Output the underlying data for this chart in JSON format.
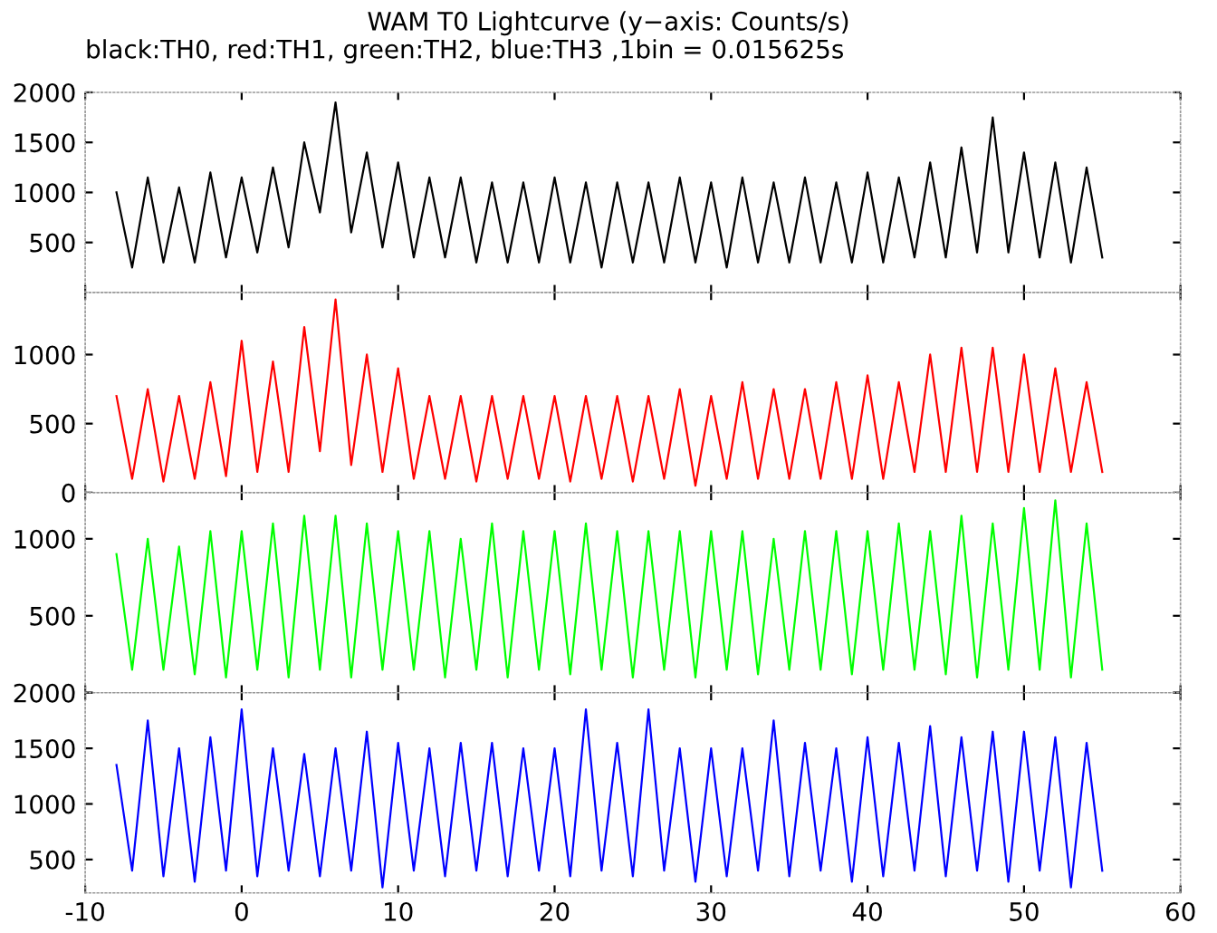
{
  "chart_data": [
    {
      "type": "line",
      "title": "WAM T0 Lightcurve (y−axis: Counts/s)",
      "subtitle": "black:TH0, red:TH1, green:TH2, blue:TH3 ,1bin = 0.015625s",
      "x": [
        -8,
        -7,
        -6,
        -5,
        -4,
        -3,
        -2,
        -1,
        0,
        1,
        2,
        3,
        4,
        5,
        6,
        7,
        8,
        9,
        10,
        11,
        12,
        13,
        14,
        15,
        16,
        17,
        18,
        19,
        20,
        21,
        22,
        23,
        24,
        25,
        26,
        27,
        28,
        29,
        30,
        31,
        32,
        33,
        34,
        35,
        36,
        37,
        38,
        39,
        40,
        41,
        42,
        43,
        44,
        45,
        46,
        47,
        48,
        49,
        50,
        51,
        52,
        53,
        54,
        55
      ],
      "series": [
        {
          "color": "#000000",
          "values": [
            1000,
            250,
            1150,
            300,
            1050,
            300,
            1200,
            350,
            1150,
            400,
            1250,
            450,
            1500,
            800,
            1900,
            600,
            1400,
            450,
            1300,
            350,
            1150,
            350,
            1150,
            300,
            1100,
            300,
            1100,
            300,
            1150,
            300,
            1100,
            250,
            1100,
            300,
            1100,
            300,
            1150,
            300,
            1100,
            250,
            1150,
            300,
            1100,
            300,
            1150,
            300,
            1100,
            300,
            1200,
            300,
            1150,
            350,
            1300,
            350,
            1450,
            400,
            1750,
            400,
            1400,
            350,
            1300,
            300,
            1250,
            350
          ]
        }
      ],
      "xlim": [
        -10,
        60
      ],
      "xticks": [
        -10,
        0,
        10,
        20,
        30,
        40,
        50,
        60
      ],
      "ylim": [
        0,
        2000
      ],
      "yticks": [
        500,
        1000,
        1500,
        2000
      ],
      "tick_labels": "y",
      "grid": false
    },
    {
      "type": "line",
      "x": [
        -8,
        -7,
        -6,
        -5,
        -4,
        -3,
        -2,
        -1,
        0,
        1,
        2,
        3,
        4,
        5,
        6,
        7,
        8,
        9,
        10,
        11,
        12,
        13,
        14,
        15,
        16,
        17,
        18,
        19,
        20,
        21,
        22,
        23,
        24,
        25,
        26,
        27,
        28,
        29,
        30,
        31,
        32,
        33,
        34,
        35,
        36,
        37,
        38,
        39,
        40,
        41,
        42,
        43,
        44,
        45,
        46,
        47,
        48,
        49,
        50,
        51,
        52,
        53,
        54,
        55
      ],
      "series": [
        {
          "color": "#ff0000",
          "values": [
            700,
            100,
            750,
            80,
            700,
            100,
            800,
            120,
            1100,
            150,
            950,
            150,
            1200,
            300,
            1400,
            200,
            1000,
            150,
            900,
            100,
            700,
            100,
            700,
            80,
            700,
            100,
            700,
            100,
            700,
            80,
            700,
            100,
            700,
            80,
            700,
            100,
            750,
            50,
            700,
            100,
            800,
            100,
            750,
            100,
            750,
            100,
            800,
            100,
            850,
            100,
            800,
            150,
            1000,
            150,
            1050,
            150,
            1050,
            150,
            1000,
            150,
            900,
            150,
            800,
            150
          ]
        }
      ],
      "xlim": [
        -10,
        60
      ],
      "xticks": [
        -10,
        0,
        10,
        20,
        30,
        40,
        50,
        60
      ],
      "ylim": [
        0,
        1450
      ],
      "yticks": [
        0,
        500,
        1000
      ],
      "tick_labels": "y",
      "grid": false
    },
    {
      "type": "line",
      "x": [
        -8,
        -7,
        -6,
        -5,
        -4,
        -3,
        -2,
        -1,
        0,
        1,
        2,
        3,
        4,
        5,
        6,
        7,
        8,
        9,
        10,
        11,
        12,
        13,
        14,
        15,
        16,
        17,
        18,
        19,
        20,
        21,
        22,
        23,
        24,
        25,
        26,
        27,
        28,
        29,
        30,
        31,
        32,
        33,
        34,
        35,
        36,
        37,
        38,
        39,
        40,
        41,
        42,
        43,
        44,
        45,
        46,
        47,
        48,
        49,
        50,
        51,
        52,
        53,
        54,
        55
      ],
      "series": [
        {
          "color": "#00ff00",
          "values": [
            900,
            150,
            1000,
            150,
            950,
            120,
            1050,
            100,
            1050,
            150,
            1100,
            100,
            1150,
            150,
            1150,
            100,
            1100,
            150,
            1050,
            150,
            1050,
            100,
            1000,
            150,
            1100,
            100,
            1050,
            150,
            1050,
            120,
            1100,
            150,
            1050,
            100,
            1050,
            150,
            1050,
            100,
            1050,
            150,
            1050,
            120,
            1000,
            150,
            1050,
            150,
            1050,
            120,
            1050,
            150,
            1100,
            150,
            1050,
            120,
            1150,
            100,
            1100,
            150,
            1200,
            150,
            1250,
            100,
            1100,
            150
          ]
        }
      ],
      "xlim": [
        -10,
        60
      ],
      "xticks": [
        -10,
        0,
        10,
        20,
        30,
        40,
        50,
        60
      ],
      "ylim": [
        0,
        1300
      ],
      "yticks": [
        {
          "value": 0,
          "label": null
        },
        500,
        1000
      ],
      "tick_labels": "y",
      "grid": false
    },
    {
      "type": "line",
      "x": [
        -8,
        -7,
        -6,
        -5,
        -4,
        -3,
        -2,
        -1,
        0,
        1,
        2,
        3,
        4,
        5,
        6,
        7,
        8,
        9,
        10,
        11,
        12,
        13,
        14,
        15,
        16,
        17,
        18,
        19,
        20,
        21,
        22,
        23,
        24,
        25,
        26,
        27,
        28,
        29,
        30,
        31,
        32,
        33,
        34,
        35,
        36,
        37,
        38,
        39,
        40,
        41,
        42,
        43,
        44,
        45,
        46,
        47,
        48,
        49,
        50,
        51,
        52,
        53,
        54,
        55
      ],
      "series": [
        {
          "color": "#0000ff",
          "values": [
            1350,
            400,
            1750,
            350,
            1500,
            300,
            1600,
            400,
            1850,
            350,
            1500,
            400,
            1450,
            350,
            1500,
            400,
            1650,
            250,
            1550,
            400,
            1500,
            350,
            1550,
            400,
            1550,
            350,
            1500,
            400,
            1500,
            350,
            1850,
            400,
            1550,
            350,
            1850,
            400,
            1500,
            300,
            1500,
            350,
            1500,
            400,
            1750,
            350,
            1550,
            400,
            1500,
            300,
            1600,
            350,
            1550,
            400,
            1700,
            350,
            1600,
            400,
            1650,
            300,
            1650,
            400,
            1600,
            250,
            1550,
            400
          ]
        }
      ],
      "xlim": [
        -10,
        60
      ],
      "xticks": [
        -10,
        0,
        10,
        20,
        30,
        40,
        50,
        60
      ],
      "ylim": [
        200,
        2000
      ],
      "yticks": [
        500,
        1000,
        1500,
        2000
      ],
      "grid": false
    }
  ]
}
